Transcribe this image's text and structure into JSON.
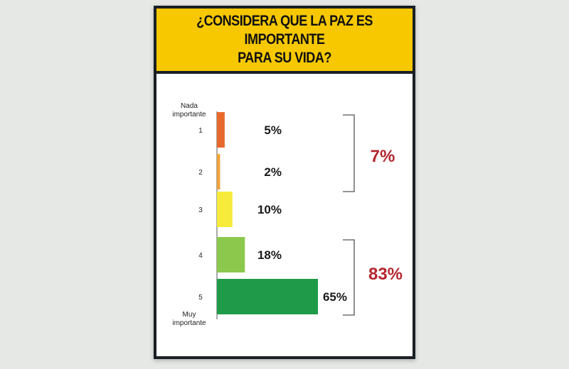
{
  "chart_data": {
    "type": "bar",
    "orientation": "horizontal",
    "title": "¿CONSIDERA QUE LA PAZ ES IMPORTANTE PARA SU VIDA?",
    "scale_top_label": "Nada importante",
    "scale_bottom_label": "Muy importante",
    "categories": [
      "1",
      "2",
      "3",
      "4",
      "5"
    ],
    "values": [
      5,
      2,
      10,
      18,
      65
    ],
    "value_labels": [
      "5%",
      "2%",
      "10%",
      "18%",
      "65%"
    ],
    "bar_colors": [
      "#e8692c",
      "#f0a33a",
      "#f6ea3a",
      "#8cc84b",
      "#1f9a48"
    ],
    "xlim": [
      0,
      65
    ],
    "groups": [
      {
        "label": "7%",
        "from": 0,
        "to": 1,
        "color": "#b3262e"
      },
      {
        "label": "83%",
        "from": 3,
        "to": 4,
        "color": "#b3262e"
      }
    ],
    "grid": false,
    "legend": "none"
  }
}
